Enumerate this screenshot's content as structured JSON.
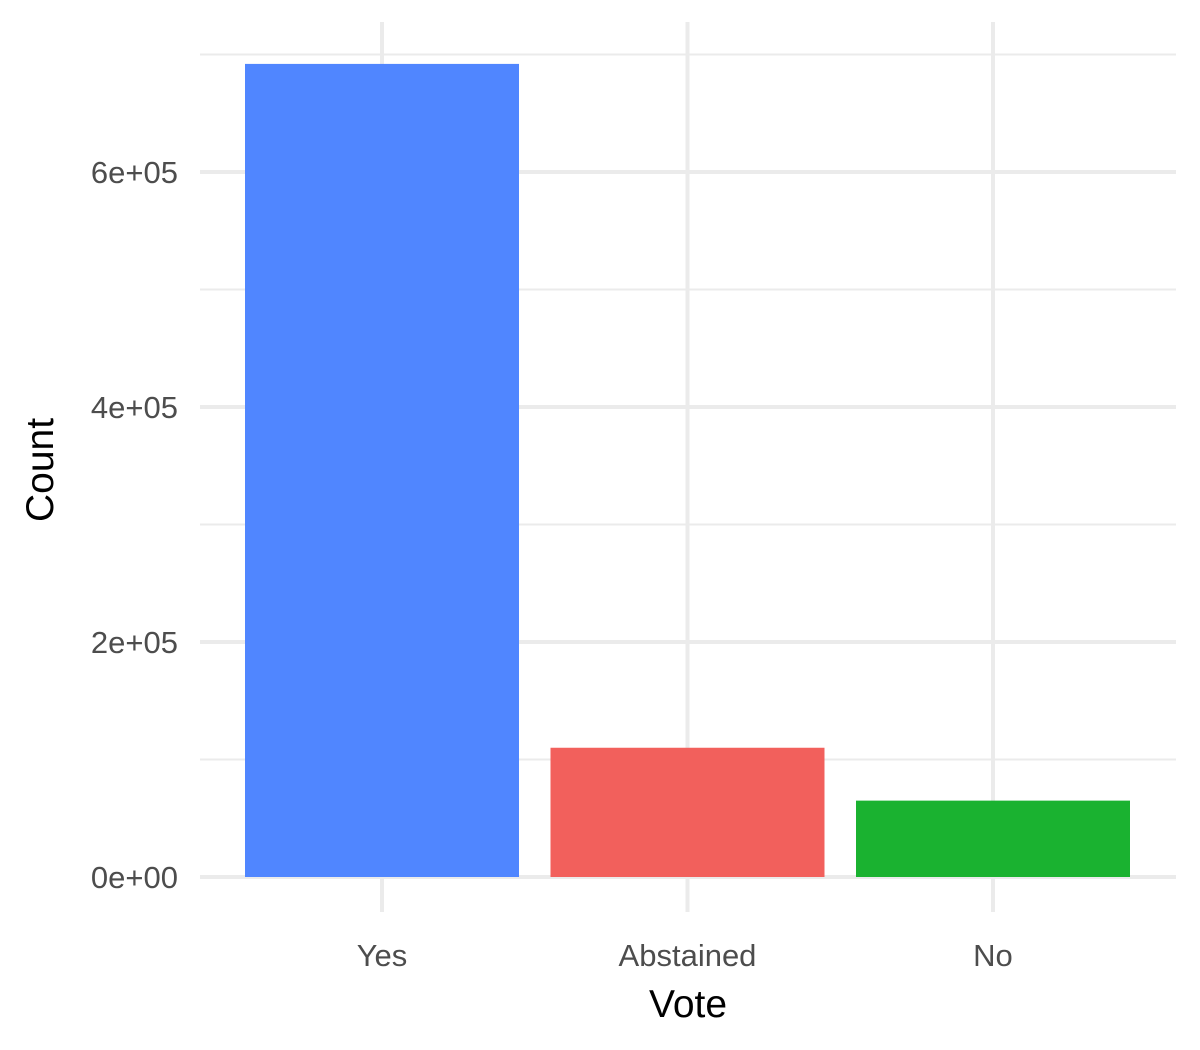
{
  "chart_data": {
    "type": "bar",
    "xlabel": "Vote",
    "ylabel": "Count",
    "categories": [
      "Yes",
      "Abstained",
      "No"
    ],
    "values": [
      692000,
      110000,
      65000
    ],
    "colors": [
      "#5086FF",
      "#F2605C",
      "#1AB230"
    ],
    "ylim": [
      -30000,
      740000
    ],
    "yticks": [
      {
        "value": 0,
        "label": "0e+00"
      },
      {
        "value": 200000,
        "label": "2e+05"
      },
      {
        "value": 400000,
        "label": "4e+05"
      },
      {
        "value": 600000,
        "label": "6e+05"
      }
    ],
    "yminor": [
      100000,
      300000,
      500000,
      700000
    ],
    "grid": true,
    "legend": "none"
  }
}
